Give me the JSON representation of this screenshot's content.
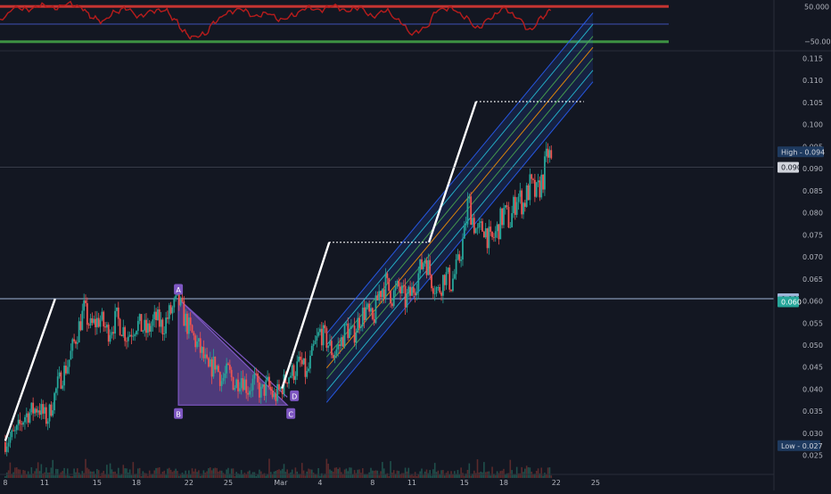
{
  "chart_data": {
    "type": "line",
    "colors": {
      "background": "#131722",
      "axis_text": "#b2b5be",
      "candle_up": "#26a69a",
      "candle_down": "#ef5350",
      "channel": "#2962ff",
      "triangle": "#7e57c2",
      "oscillator": "#b71c1c",
      "horizontal_line": "#9fb4d8"
    },
    "oscillator": {
      "upper_label": "50.000",
      "lower_label": "−50.000",
      "ylim": [
        -70,
        70
      ],
      "upper_level": 50,
      "lower_level": -50,
      "mid_level": 0
    },
    "price_axis": {
      "ylim": [
        0.0215,
        0.1165
      ],
      "ticks": [
        "0.115",
        "0.110",
        "0.105",
        "0.100",
        "0.095",
        "0.090",
        "0.085",
        "0.080",
        "0.075",
        "0.070",
        "0.065",
        "0.060",
        "0.055",
        "0.050",
        "0.045",
        "0.040",
        "0.035",
        "0.030",
        "0.025"
      ],
      "horizontal_line_value": 0.0605,
      "horizontal_line_label": "0.061",
      "current_price_label": "0.090",
      "current_price_value": 0.0903,
      "level_label": "0.060",
      "level_value": 0.0598,
      "high_label": "High - 0.094",
      "high_value": 0.0938,
      "low_label": "Low - 0.027",
      "low_value": 0.0272
    },
    "time_axis": {
      "range_days": [
        -0.4,
        58.6
      ],
      "ticks": [
        {
          "label": "8",
          "day": 0
        },
        {
          "label": "11",
          "day": 3
        },
        {
          "label": "15",
          "day": 7
        },
        {
          "label": "18",
          "day": 10
        },
        {
          "label": "22",
          "day": 14
        },
        {
          "label": "25",
          "day": 17
        },
        {
          "label": "Mar",
          "day": 21
        },
        {
          "label": "4",
          "day": 24
        },
        {
          "label": "8",
          "day": 28
        },
        {
          "label": "11",
          "day": 31
        },
        {
          "label": "15",
          "day": 35
        },
        {
          "label": "18",
          "day": 38
        },
        {
          "label": "22",
          "day": 42
        },
        {
          "label": "25",
          "day": 45
        }
      ]
    },
    "price_path": [
      [
        0,
        0.028
      ],
      [
        0.8,
        0.03
      ],
      [
        1.5,
        0.034
      ],
      [
        2.5,
        0.036
      ],
      [
        3.2,
        0.033
      ],
      [
        4,
        0.041
      ],
      [
        4.8,
        0.046
      ],
      [
        5.4,
        0.052
      ],
      [
        6,
        0.058
      ],
      [
        6.5,
        0.054
      ],
      [
        7.2,
        0.056
      ],
      [
        7.8,
        0.053
      ],
      [
        8.5,
        0.056
      ],
      [
        9.3,
        0.052
      ],
      [
        10,
        0.055
      ],
      [
        10.8,
        0.053
      ],
      [
        11.5,
        0.056
      ],
      [
        12,
        0.054
      ],
      [
        12.5,
        0.057
      ],
      [
        13.2,
        0.06
      ],
      [
        13.8,
        0.055
      ],
      [
        14.3,
        0.052
      ],
      [
        15,
        0.048
      ],
      [
        15.5,
        0.044
      ],
      [
        16,
        0.046
      ],
      [
        16.5,
        0.042
      ],
      [
        17,
        0.044
      ],
      [
        17.5,
        0.041
      ],
      [
        18,
        0.043
      ],
      [
        18.5,
        0.04
      ],
      [
        19,
        0.042
      ],
      [
        19.5,
        0.039
      ],
      [
        20,
        0.041
      ],
      [
        20.5,
        0.038
      ],
      [
        21,
        0.04
      ],
      [
        21.5,
        0.043
      ],
      [
        22,
        0.044
      ],
      [
        22.5,
        0.046
      ],
      [
        23,
        0.043
      ],
      [
        23.5,
        0.049
      ],
      [
        24,
        0.053
      ],
      [
        24.5,
        0.051
      ],
      [
        25,
        0.048
      ],
      [
        25.5,
        0.05
      ],
      [
        26,
        0.054
      ],
      [
        26.5,
        0.052
      ],
      [
        27,
        0.056
      ],
      [
        27.5,
        0.058
      ],
      [
        28,
        0.055
      ],
      [
        28.5,
        0.062
      ],
      [
        29,
        0.064
      ],
      [
        29.5,
        0.061
      ],
      [
        30,
        0.063
      ],
      [
        30.5,
        0.06
      ],
      [
        31,
        0.062
      ],
      [
        31.5,
        0.066
      ],
      [
        32,
        0.07
      ],
      [
        32.5,
        0.065
      ],
      [
        33,
        0.062
      ],
      [
        33.5,
        0.066
      ],
      [
        34,
        0.064
      ],
      [
        34.5,
        0.068
      ],
      [
        35,
        0.075
      ],
      [
        35.3,
        0.083
      ],
      [
        35.6,
        0.079
      ],
      [
        36,
        0.075
      ],
      [
        36.5,
        0.077
      ],
      [
        37,
        0.073
      ],
      [
        37.5,
        0.076
      ],
      [
        38,
        0.08
      ],
      [
        38.5,
        0.078
      ],
      [
        39,
        0.084
      ],
      [
        39.5,
        0.082
      ],
      [
        40,
        0.086
      ],
      [
        40.5,
        0.084
      ],
      [
        41,
        0.088
      ],
      [
        41.4,
        0.094
      ],
      [
        41.7,
        0.09
      ]
    ],
    "oscillator_path": [
      [
        -0.4,
        12
      ],
      [
        0.8,
        48
      ],
      [
        1.8,
        42
      ],
      [
        2.8,
        55
      ],
      [
        3.8,
        46
      ],
      [
        4.8,
        60
      ],
      [
        5.8,
        48
      ],
      [
        6.6,
        20
      ],
      [
        7.4,
        8
      ],
      [
        8.4,
        35
      ],
      [
        9.2,
        46
      ],
      [
        10.2,
        22
      ],
      [
        11.2,
        38
      ],
      [
        12.2,
        40
      ],
      [
        13,
        10
      ],
      [
        13.6,
        -22
      ],
      [
        14.2,
        -38
      ],
      [
        15.2,
        -30
      ],
      [
        16,
        8
      ],
      [
        17,
        34
      ],
      [
        18,
        44
      ],
      [
        19,
        22
      ],
      [
        20,
        32
      ],
      [
        21,
        12
      ],
      [
        22,
        26
      ],
      [
        23,
        48
      ],
      [
        24,
        40
      ],
      [
        25,
        54
      ],
      [
        26,
        38
      ],
      [
        27,
        48
      ],
      [
        28,
        22
      ],
      [
        29,
        40
      ],
      [
        30,
        10
      ],
      [
        31,
        -28
      ],
      [
        32,
        -12
      ],
      [
        33,
        42
      ],
      [
        34,
        46
      ],
      [
        35,
        22
      ],
      [
        36,
        -12
      ],
      [
        37,
        18
      ],
      [
        38,
        46
      ],
      [
        39,
        20
      ],
      [
        40,
        -18
      ],
      [
        41,
        22
      ],
      [
        41.7,
        44
      ]
    ],
    "channel": {
      "start": [
        24.5,
        0.0448
      ],
      "end": [
        44.8,
        0.1175
      ],
      "band_offsets": [
        0.0025,
        0.0052,
        0.0078
      ]
    },
    "triangle": {
      "points": [
        {
          "label": "A",
          "day": 13.2,
          "value": 0.0605
        },
        {
          "label": "B",
          "day": 13.2,
          "value": 0.0364
        },
        {
          "label": "C",
          "day": 21.5,
          "value": 0.0364
        },
        {
          "label": "D",
          "day": 21.5,
          "value": 0.0382
        }
      ]
    },
    "white_projection_lines": [
      {
        "from": [
          0,
          0.0283
        ],
        "to": [
          3.8,
          0.0605
        ],
        "level_end_day": 3.8
      },
      {
        "from": [
          21.1,
          0.0402
        ],
        "to": [
          24.7,
          0.0733
        ],
        "level_end_day": 32.3
      },
      {
        "from": [
          32.3,
          0.0733
        ],
        "to": [
          35.9,
          0.1052
        ],
        "level_end_day": 44.1
      }
    ]
  }
}
